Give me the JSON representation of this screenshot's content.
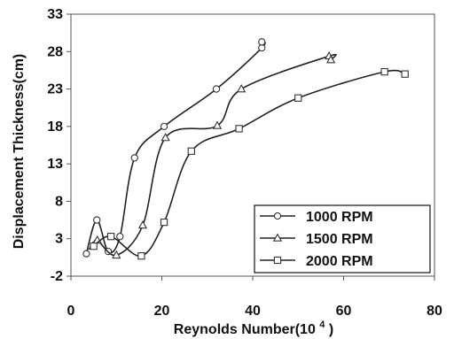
{
  "chart_data": {
    "type": "scatter",
    "xlabel": "Reynolds Number(10",
    "xlabel_sup": "4",
    "xlabel_close": ")",
    "ylabel": "Displacement Thickness(cm)",
    "xlim": [
      0,
      80
    ],
    "ylim": [
      -2,
      33
    ],
    "x_ticks": [
      0,
      20,
      40,
      60,
      80
    ],
    "y_ticks": [
      -2,
      3,
      8,
      13,
      18,
      23,
      28,
      33
    ],
    "grid": false,
    "legend_position": "bottom-right",
    "series": [
      {
        "name": "1000 RPM",
        "marker": "circle",
        "x": [
          3.4,
          5.7,
          8.2,
          10.8,
          14.0,
          20.5,
          32.0,
          42.0,
          42.0
        ],
        "y": [
          1.0,
          5.5,
          1.3,
          3.3,
          13.8,
          18.0,
          23.0,
          28.5,
          29.3
        ]
      },
      {
        "name": "1500 RPM",
        "marker": "triangle",
        "x": [
          4.8,
          5.8,
          10.0,
          15.8,
          20.8,
          32.2,
          37.5,
          56.8,
          57.2
        ],
        "y": [
          2.0,
          2.8,
          0.8,
          4.8,
          16.5,
          18.1,
          23.0,
          27.4,
          26.9
        ]
      },
      {
        "name": "2000 RPM",
        "marker": "square",
        "x": [
          5.0,
          8.8,
          15.5,
          20.5,
          26.5,
          37.0,
          50.0,
          69.0,
          73.5
        ],
        "y": [
          2.0,
          3.3,
          0.7,
          5.2,
          14.7,
          17.7,
          21.8,
          25.3,
          25.0
        ]
      }
    ]
  }
}
